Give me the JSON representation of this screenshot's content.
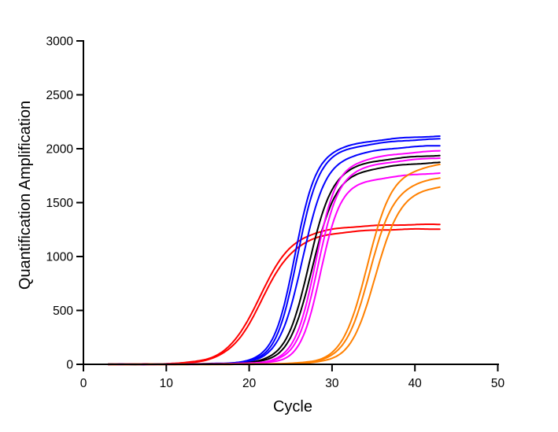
{
  "figure": {
    "background_color": "#ffffff",
    "axis_color": "#000000",
    "description": "qPCR amplification plot: fluorescence (quantification amplification) versus PCR cycle for 13 reactions in 5 color groups"
  },
  "chart_data": {
    "type": "line",
    "title": "",
    "xlabel": "Cycle",
    "ylabel": "Quantification Amplification",
    "xlim": [
      0,
      50
    ],
    "ylim": [
      0,
      3000
    ],
    "x_ticks": [
      0,
      10,
      20,
      30,
      40,
      50
    ],
    "y_ticks": [
      0,
      500,
      1000,
      1500,
      2000,
      2500,
      3000
    ],
    "grid": false,
    "legend": false,
    "cycle_start": 3,
    "cycle_end": 43,
    "curve_model": "logistic sigmoid: value(c) = plateau * (0.9/(1+exp(-slope*(c-ct))) + 0.1/(1+exp(-0.25*(c-ct-5)))), baseline ~0 before threshold",
    "series": [
      {
        "name": "red-1",
        "color": "#FF0000",
        "plateau": 1300,
        "ct": 21.2,
        "slope": 0.52,
        "end_value": 1300
      },
      {
        "name": "red-2",
        "color": "#FF0000",
        "plateau": 1258,
        "ct": 21.5,
        "slope": 0.52,
        "end_value": 1258
      },
      {
        "name": "blue-1",
        "color": "#0000FF",
        "plateau": 2125,
        "ct": 25.5,
        "slope": 0.78,
        "end_value": 2120
      },
      {
        "name": "blue-2",
        "color": "#0000FF",
        "plateau": 2100,
        "ct": 25.8,
        "slope": 0.78,
        "end_value": 2095
      },
      {
        "name": "blue-3",
        "color": "#0000FF",
        "plateau": 2040,
        "ct": 26.4,
        "slope": 0.72,
        "end_value": 2035
      },
      {
        "name": "black-1",
        "color": "#000000",
        "plateau": 1950,
        "ct": 27.2,
        "slope": 0.72,
        "end_value": 1945
      },
      {
        "name": "black-2",
        "color": "#000000",
        "plateau": 1885,
        "ct": 27.6,
        "slope": 0.72,
        "end_value": 1880
      },
      {
        "name": "magenta-1",
        "color": "#FF00FF",
        "plateau": 1995,
        "ct": 28.0,
        "slope": 0.8,
        "end_value": 1990
      },
      {
        "name": "magenta-2",
        "color": "#FF00FF",
        "plateau": 1930,
        "ct": 28.3,
        "slope": 0.8,
        "end_value": 1925
      },
      {
        "name": "magenta-3",
        "color": "#FF00FF",
        "plateau": 1790,
        "ct": 28.6,
        "slope": 0.85,
        "end_value": 1785
      },
      {
        "name": "orange-1",
        "color": "#FF8000",
        "plateau": 1910,
        "ct": 34.2,
        "slope": 0.68,
        "end_value": 1855
      },
      {
        "name": "orange-2",
        "color": "#FF8000",
        "plateau": 1785,
        "ct": 34.5,
        "slope": 0.68,
        "end_value": 1730
      },
      {
        "name": "orange-3",
        "color": "#FF8000",
        "plateau": 1710,
        "ct": 35.2,
        "slope": 0.68,
        "end_value": 1655
      }
    ]
  }
}
